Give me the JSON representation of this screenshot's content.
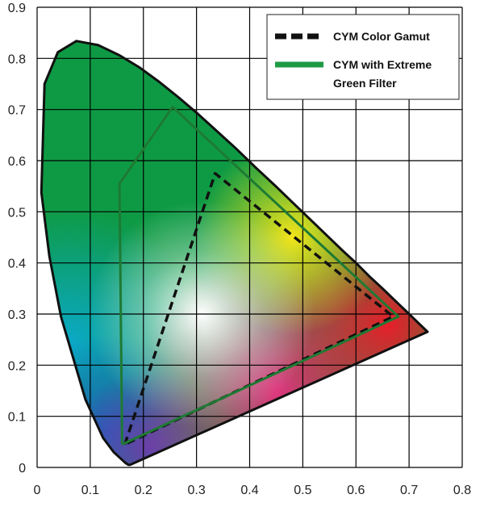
{
  "chart_data": {
    "type": "scatter",
    "title": "",
    "xlabel": "",
    "ylabel": "",
    "xlim": [
      0,
      0.8
    ],
    "ylim": [
      0,
      0.9
    ],
    "x_ticks": [
      "0",
      "0.1",
      "0.2",
      "0.3",
      "0.4",
      "0.5",
      "0.6",
      "0.7",
      "0.8"
    ],
    "y_ticks": [
      "0",
      "0.1",
      "0.2",
      "0.3",
      "0.4",
      "0.5",
      "0.6",
      "0.7",
      "0.8",
      "0.9"
    ],
    "grid": true,
    "legend_position": "top-right",
    "spectral_locus": [
      [
        0.175,
        0.005
      ],
      [
        0.172,
        0.005
      ],
      [
        0.166,
        0.009
      ],
      [
        0.144,
        0.03
      ],
      [
        0.124,
        0.058
      ],
      [
        0.091,
        0.133
      ],
      [
        0.045,
        0.295
      ],
      [
        0.023,
        0.413
      ],
      [
        0.008,
        0.538
      ],
      [
        0.014,
        0.75
      ],
      [
        0.039,
        0.812
      ],
      [
        0.074,
        0.834
      ],
      [
        0.115,
        0.826
      ],
      [
        0.155,
        0.806
      ],
      [
        0.193,
        0.782
      ],
      [
        0.23,
        0.754
      ],
      [
        0.266,
        0.724
      ],
      [
        0.302,
        0.692
      ],
      [
        0.337,
        0.659
      ],
      [
        0.374,
        0.624
      ],
      [
        0.412,
        0.586
      ],
      [
        0.448,
        0.551
      ],
      [
        0.482,
        0.517
      ],
      [
        0.516,
        0.483
      ],
      [
        0.547,
        0.452
      ],
      [
        0.575,
        0.424
      ],
      [
        0.602,
        0.398
      ],
      [
        0.627,
        0.372
      ],
      [
        0.649,
        0.351
      ],
      [
        0.666,
        0.334
      ],
      [
        0.68,
        0.32
      ],
      [
        0.692,
        0.308
      ],
      [
        0.701,
        0.299
      ],
      [
        0.709,
        0.291
      ],
      [
        0.715,
        0.285
      ],
      [
        0.719,
        0.281
      ],
      [
        0.7347,
        0.2653
      ]
    ],
    "series": [
      {
        "name": "CYM Color Gamut",
        "style": "dashed",
        "color": "#111111",
        "points": [
          [
            0.165,
            0.045
          ],
          [
            0.335,
            0.575
          ],
          [
            0.67,
            0.295
          ],
          [
            0.165,
            0.045
          ]
        ]
      },
      {
        "name": "CYM with Extreme Green Filter",
        "style": "solid",
        "color": "#1e7a33",
        "points": [
          [
            0.16,
            0.045
          ],
          [
            0.155,
            0.555
          ],
          [
            0.255,
            0.705
          ],
          [
            0.68,
            0.295
          ],
          [
            0.16,
            0.045
          ]
        ]
      }
    ],
    "legend_lines": [
      [
        "CYM Color Gamut"
      ],
      [
        "CYM with Extreme",
        "Green Filter"
      ]
    ],
    "colors": {
      "green_region": "#0e9a44",
      "cyan_region": "#0aa9c9",
      "blue_region": "#1c5fbf",
      "violet_region": "#6b3fa8",
      "magenta_region": "#e0327a",
      "red_region": "#e81e2a",
      "yellow_region": "#f4e51a",
      "white_point": "#ffffff",
      "grid": "#000000",
      "legend_green": "#1e9a45"
    }
  }
}
